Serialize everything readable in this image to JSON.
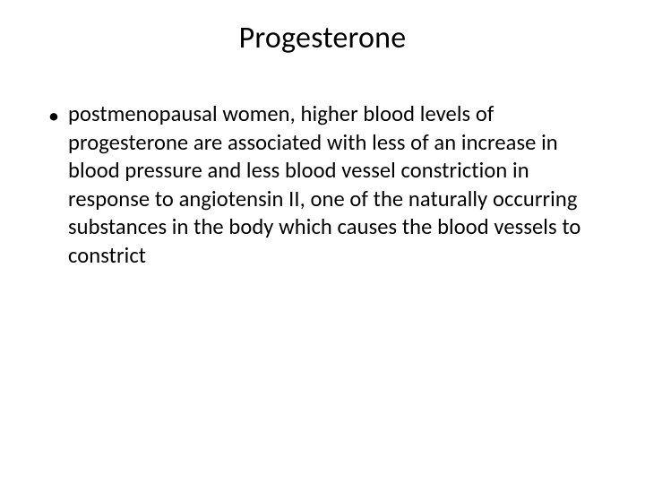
{
  "slide": {
    "title": "Progesterone",
    "bullets": [
      {
        "marker": "•",
        "text": "postmenopausal women, higher blood levels of progesterone are associated with less of an increase in blood pressure and less blood vessel constriction in response to angiotensin II, one of the naturally occurring substances in the body which causes the blood vessels to constrict"
      }
    ],
    "title_fontsize": 34,
    "body_fontsize": 24.5,
    "line_height": 31.5,
    "font_family": "Calibri",
    "text_color": "#000000",
    "background_color": "#ffffff"
  }
}
